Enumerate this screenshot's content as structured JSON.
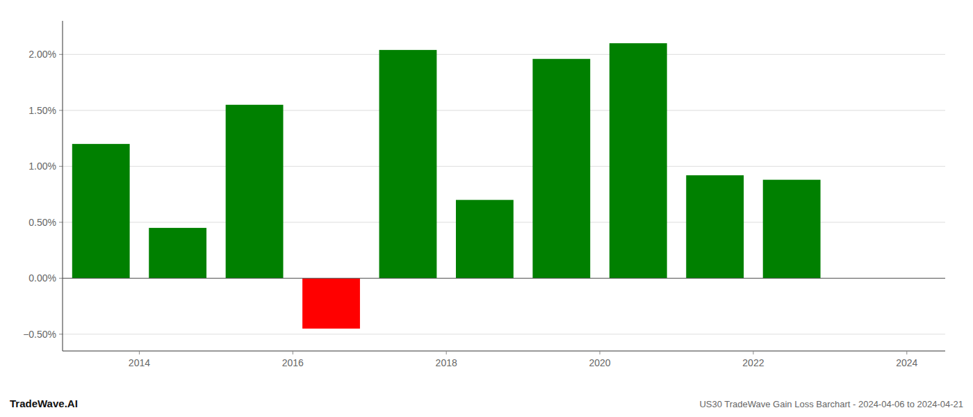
{
  "chart_data": {
    "type": "bar",
    "title": "US30 TradeWave Gain Loss Barchart - 2024-04-06 to 2024-04-21",
    "annotations": [
      "TradeWave.AI"
    ],
    "x": [
      2013.5,
      2014.5,
      2015.5,
      2016.5,
      2017.5,
      2018.5,
      2019.5,
      2020.5,
      2021.5,
      2022.5
    ],
    "values": [
      1.2,
      0.45,
      1.55,
      -0.45,
      2.04,
      0.7,
      1.96,
      2.1,
      0.92,
      0.88
    ],
    "colors": [
      "#008000",
      "#008000",
      "#008000",
      "#ff0000",
      "#008000",
      "#008000",
      "#008000",
      "#008000",
      "#008000",
      "#008000"
    ],
    "xlim": [
      2013.0,
      2024.5
    ],
    "xticks": [
      2014,
      2016,
      2018,
      2020,
      2022,
      2024
    ],
    "ylim": [
      -0.65,
      2.3
    ],
    "yticks": [
      {
        "value": -0.5,
        "label": "−0.50%"
      },
      {
        "value": 0.0,
        "label": "0.00%"
      },
      {
        "value": 0.5,
        "label": "0.50%"
      },
      {
        "value": 1.0,
        "label": "1.00%"
      },
      {
        "value": 1.5,
        "label": "1.50%"
      },
      {
        "value": 2.0,
        "label": "2.00%"
      }
    ],
    "grid": true
  }
}
